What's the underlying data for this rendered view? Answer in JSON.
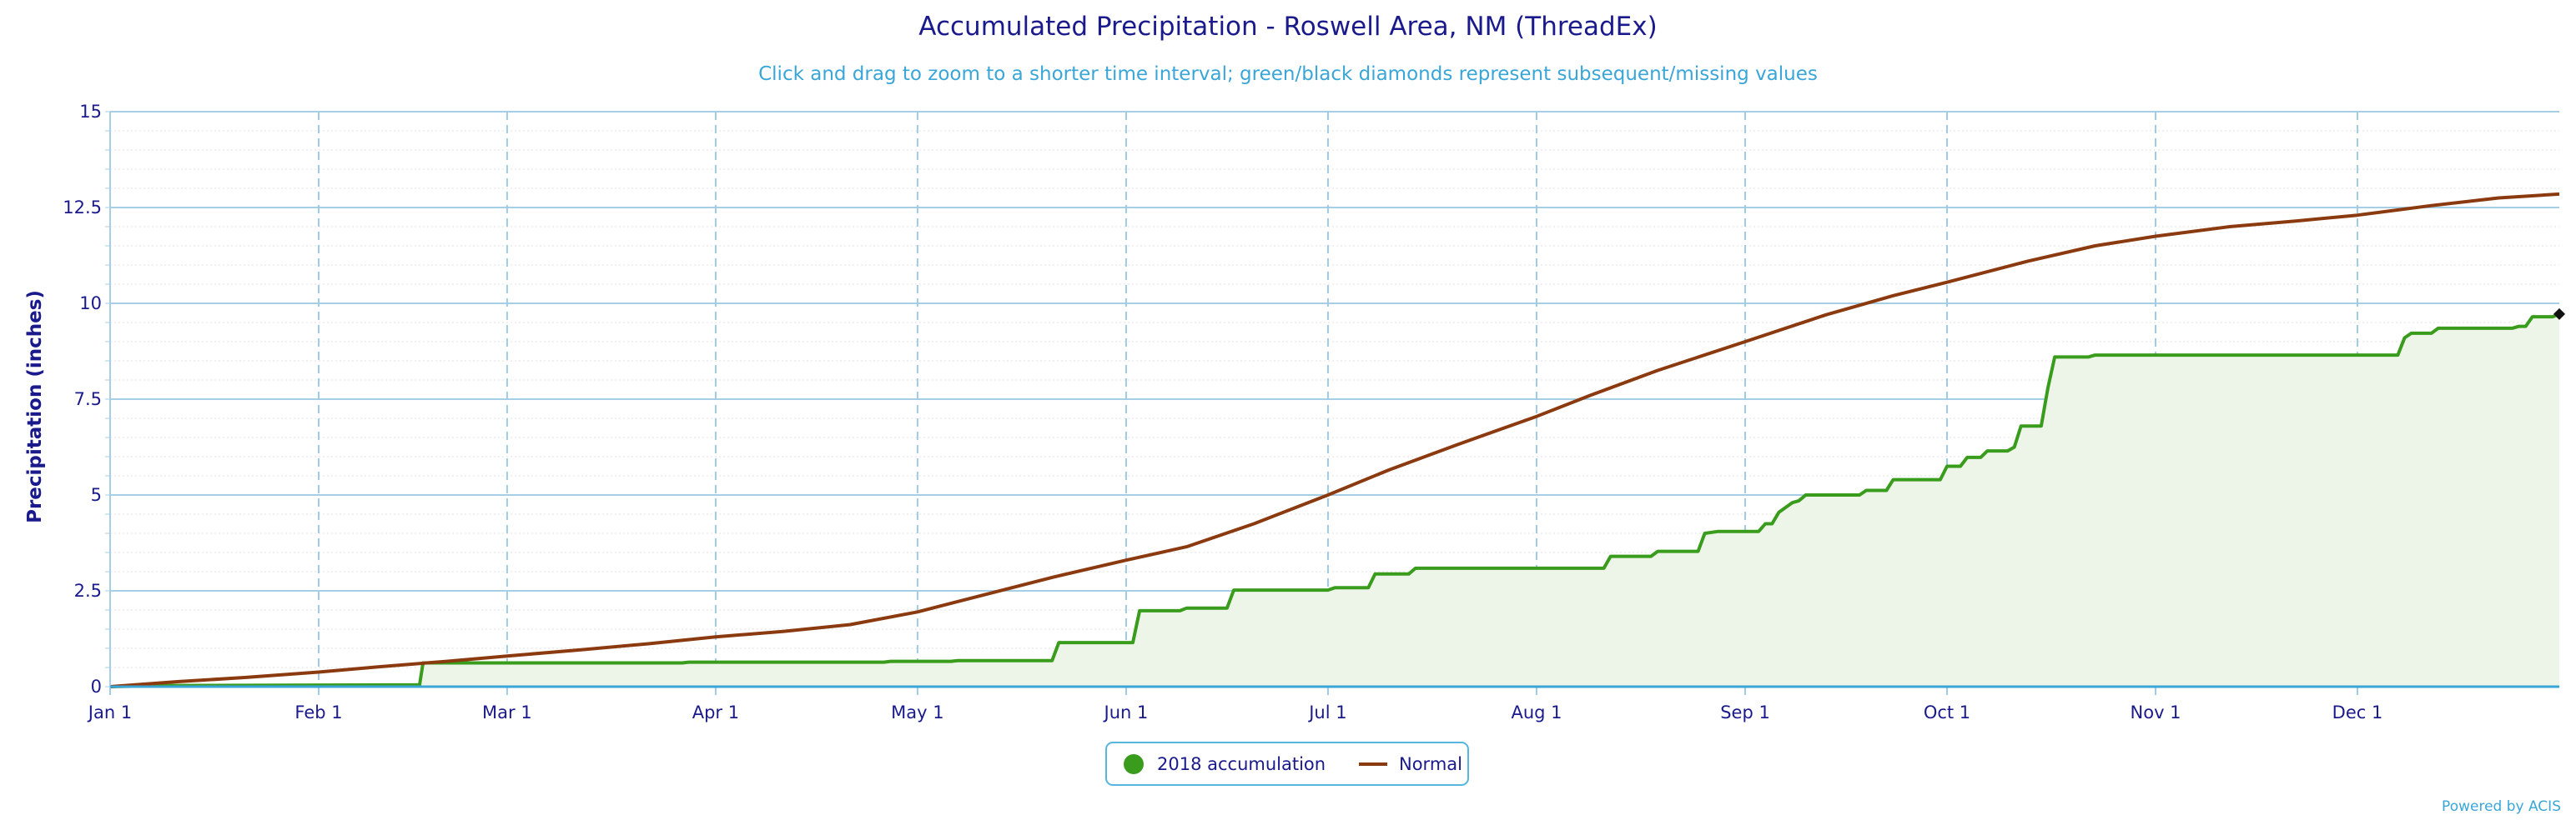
{
  "chart_data": {
    "type": "line",
    "title": "Accumulated Precipitation - Roswell Area, NM (ThreadEx)",
    "subtitle": "Click and drag to zoom to a shorter time interval; green/black diamonds represent subsequent/missing values",
    "ylabel": "Precipitation (inches)",
    "xlabel": "",
    "ylim": [
      0,
      15
    ],
    "yticks": [
      0,
      2.5,
      5,
      7.5,
      10,
      12.5,
      15
    ],
    "ytick_labels": [
      "0",
      "2.5",
      "5",
      "7.5",
      "10",
      "12.5",
      "15"
    ],
    "xlim": [
      0,
      364
    ],
    "xticks": [
      {
        "day": 0,
        "label": "Jan 1"
      },
      {
        "day": 31,
        "label": "Feb 1"
      },
      {
        "day": 59,
        "label": "Mar 1"
      },
      {
        "day": 90,
        "label": "Apr 1"
      },
      {
        "day": 120,
        "label": "May 1"
      },
      {
        "day": 151,
        "label": "Jun 1"
      },
      {
        "day": 181,
        "label": "Jul 1"
      },
      {
        "day": 212,
        "label": "Aug 1"
      },
      {
        "day": 243,
        "label": "Sep 1"
      },
      {
        "day": 273,
        "label": "Oct 1"
      },
      {
        "day": 304,
        "label": "Nov 1"
      },
      {
        "day": 334,
        "label": "Dec 1"
      }
    ],
    "grid": true,
    "legend_position": "bottom-center",
    "series": [
      {
        "name": "2018 accumulation",
        "color": "#3a9c1c",
        "fill": "#ecf5e8",
        "style": "step-area",
        "points": [
          [
            0,
            0
          ],
          [
            9,
            0.03
          ],
          [
            46,
            0.05
          ],
          [
            46.5,
            0.62
          ],
          [
            67,
            0.62
          ],
          [
            85,
            0.62
          ],
          [
            86,
            0.64
          ],
          [
            115,
            0.64
          ],
          [
            116,
            0.66
          ],
          [
            125,
            0.66
          ],
          [
            126,
            0.68
          ],
          [
            140,
            0.68
          ],
          [
            141,
            1.15
          ],
          [
            152,
            1.15
          ],
          [
            153,
            1.98
          ],
          [
            159,
            1.98
          ],
          [
            160,
            2.05
          ],
          [
            166,
            2.05
          ],
          [
            167,
            2.52
          ],
          [
            181,
            2.52
          ],
          [
            182,
            2.58
          ],
          [
            187,
            2.58
          ],
          [
            188,
            2.94
          ],
          [
            193,
            2.94
          ],
          [
            194,
            3.09
          ],
          [
            206,
            3.09
          ],
          [
            222,
            3.09
          ],
          [
            223,
            3.4
          ],
          [
            229,
            3.4
          ],
          [
            230,
            3.53
          ],
          [
            236,
            3.53
          ],
          [
            237,
            4.0
          ],
          [
            239,
            4.05
          ],
          [
            245,
            4.05
          ],
          [
            246,
            4.25
          ],
          [
            247,
            4.25
          ],
          [
            248,
            4.55
          ],
          [
            250,
            4.8
          ],
          [
            251,
            4.85
          ],
          [
            252,
            5.0
          ],
          [
            260,
            5.0
          ],
          [
            261,
            5.12
          ],
          [
            264,
            5.12
          ],
          [
            265,
            5.4
          ],
          [
            272,
            5.4
          ],
          [
            273,
            5.75
          ],
          [
            275,
            5.75
          ],
          [
            276,
            5.98
          ],
          [
            278,
            5.98
          ],
          [
            279,
            6.15
          ],
          [
            282,
            6.15
          ],
          [
            283,
            6.25
          ],
          [
            284,
            6.8
          ],
          [
            287,
            6.8
          ],
          [
            288,
            7.8
          ],
          [
            289,
            8.6
          ],
          [
            294,
            8.6
          ],
          [
            295,
            8.65
          ],
          [
            302,
            8.65
          ],
          [
            303,
            8.65
          ],
          [
            340,
            8.65
          ],
          [
            341,
            9.1
          ],
          [
            342,
            9.22
          ],
          [
            345,
            9.22
          ],
          [
            346,
            9.35
          ],
          [
            357,
            9.35
          ],
          [
            358,
            9.4
          ],
          [
            359,
            9.4
          ],
          [
            360,
            9.65
          ],
          [
            363,
            9.65
          ],
          [
            364,
            9.72
          ]
        ]
      },
      {
        "name": "Normal",
        "color": "#8b3a0f",
        "style": "line",
        "points": [
          [
            0,
            0
          ],
          [
            10,
            0.13
          ],
          [
            20,
            0.24
          ],
          [
            31,
            0.38
          ],
          [
            40,
            0.52
          ],
          [
            50,
            0.66
          ],
          [
            59,
            0.8
          ],
          [
            70,
            0.96
          ],
          [
            80,
            1.12
          ],
          [
            90,
            1.3
          ],
          [
            100,
            1.44
          ],
          [
            110,
            1.62
          ],
          [
            120,
            1.95
          ],
          [
            130,
            2.4
          ],
          [
            140,
            2.85
          ],
          [
            151,
            3.3
          ],
          [
            160,
            3.65
          ],
          [
            170,
            4.25
          ],
          [
            181,
            5.0
          ],
          [
            190,
            5.65
          ],
          [
            200,
            6.3
          ],
          [
            212,
            7.05
          ],
          [
            220,
            7.6
          ],
          [
            230,
            8.25
          ],
          [
            243,
            9.0
          ],
          [
            255,
            9.7
          ],
          [
            265,
            10.2
          ],
          [
            273,
            10.55
          ],
          [
            285,
            11.1
          ],
          [
            295,
            11.5
          ],
          [
            304,
            11.75
          ],
          [
            315,
            12.0
          ],
          [
            325,
            12.15
          ],
          [
            334,
            12.3
          ],
          [
            345,
            12.55
          ],
          [
            355,
            12.75
          ],
          [
            364,
            12.85
          ]
        ]
      }
    ],
    "markers": [
      {
        "series": "2018 accumulation",
        "x": 364,
        "y": 9.72,
        "shape": "diamond",
        "color": "#111111"
      }
    ]
  },
  "legend": {
    "item1_label": "2018 accumulation",
    "item2_label": "Normal"
  },
  "credit": "Powered by ACIS"
}
